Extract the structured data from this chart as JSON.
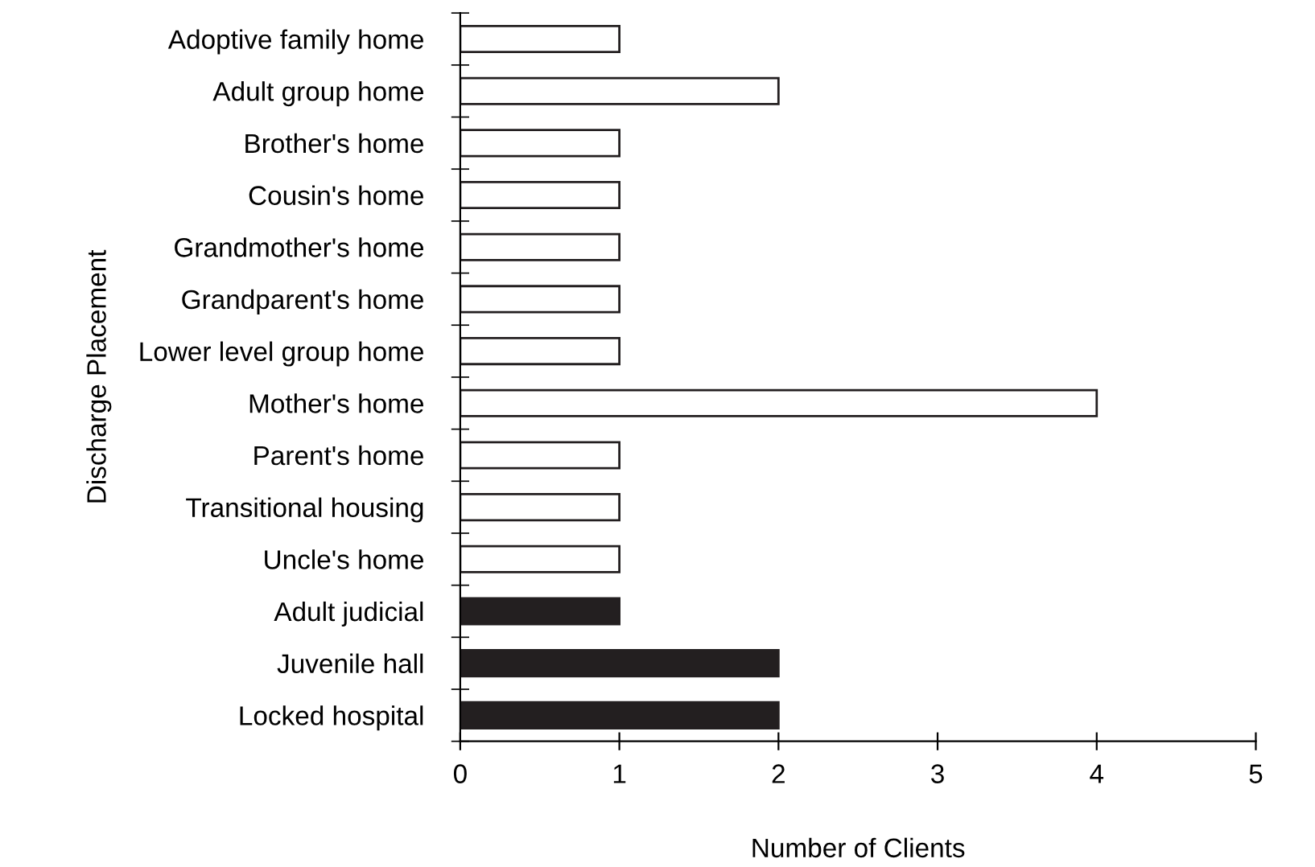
{
  "chart_data": {
    "type": "bar",
    "orientation": "horizontal",
    "xlabel": "Number of Clients",
    "ylabel": "Discharge Placement",
    "categories": [
      "Adoptive family home",
      "Adult group home",
      "Brother's home",
      "Cousin's home",
      "Grandmother's home",
      "Grandparent's home",
      "Lower level group home",
      "Mother's home",
      "Parent's home",
      "Transitional housing",
      "Uncle's home",
      "Adult judicial",
      "Juvenile hall",
      "Locked hospital"
    ],
    "values": [
      1,
      2,
      1,
      1,
      1,
      1,
      1,
      4,
      1,
      1,
      1,
      1,
      2,
      2
    ],
    "colors": [
      "#ffffff",
      "#ffffff",
      "#ffffff",
      "#ffffff",
      "#ffffff",
      "#ffffff",
      "#ffffff",
      "#ffffff",
      "#ffffff",
      "#ffffff",
      "#ffffff",
      "#231f20",
      "#231f20",
      "#231f20"
    ],
    "xlim": [
      0,
      5
    ],
    "xticks": [
      0,
      1,
      2,
      3,
      4,
      5
    ],
    "grid": false,
    "legend": false
  }
}
